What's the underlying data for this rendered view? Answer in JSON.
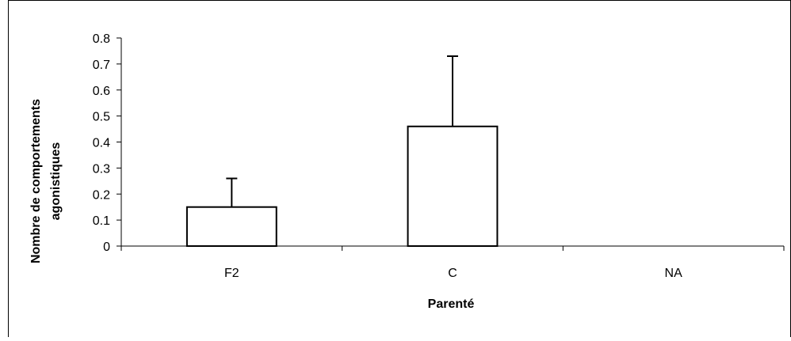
{
  "chart_data": {
    "type": "bar",
    "categories": [
      "F2",
      "C",
      "NA"
    ],
    "values": [
      0.15,
      0.46,
      0
    ],
    "error_bars": [
      0.11,
      0.27,
      0
    ],
    "title": "",
    "xlabel": "Parenté",
    "ylabel_lines": [
      "Nombre de comportements",
      "agonistiques"
    ],
    "ylim": [
      0,
      0.8
    ],
    "yticks": [
      "0",
      "0.1",
      "0.2",
      "0.3",
      "0.4",
      "0.5",
      "0.6",
      "0.7",
      "0.8"
    ],
    "grid": false,
    "legend": "none",
    "bar_fill": "#ffffff",
    "bar_stroke": "#000000"
  }
}
